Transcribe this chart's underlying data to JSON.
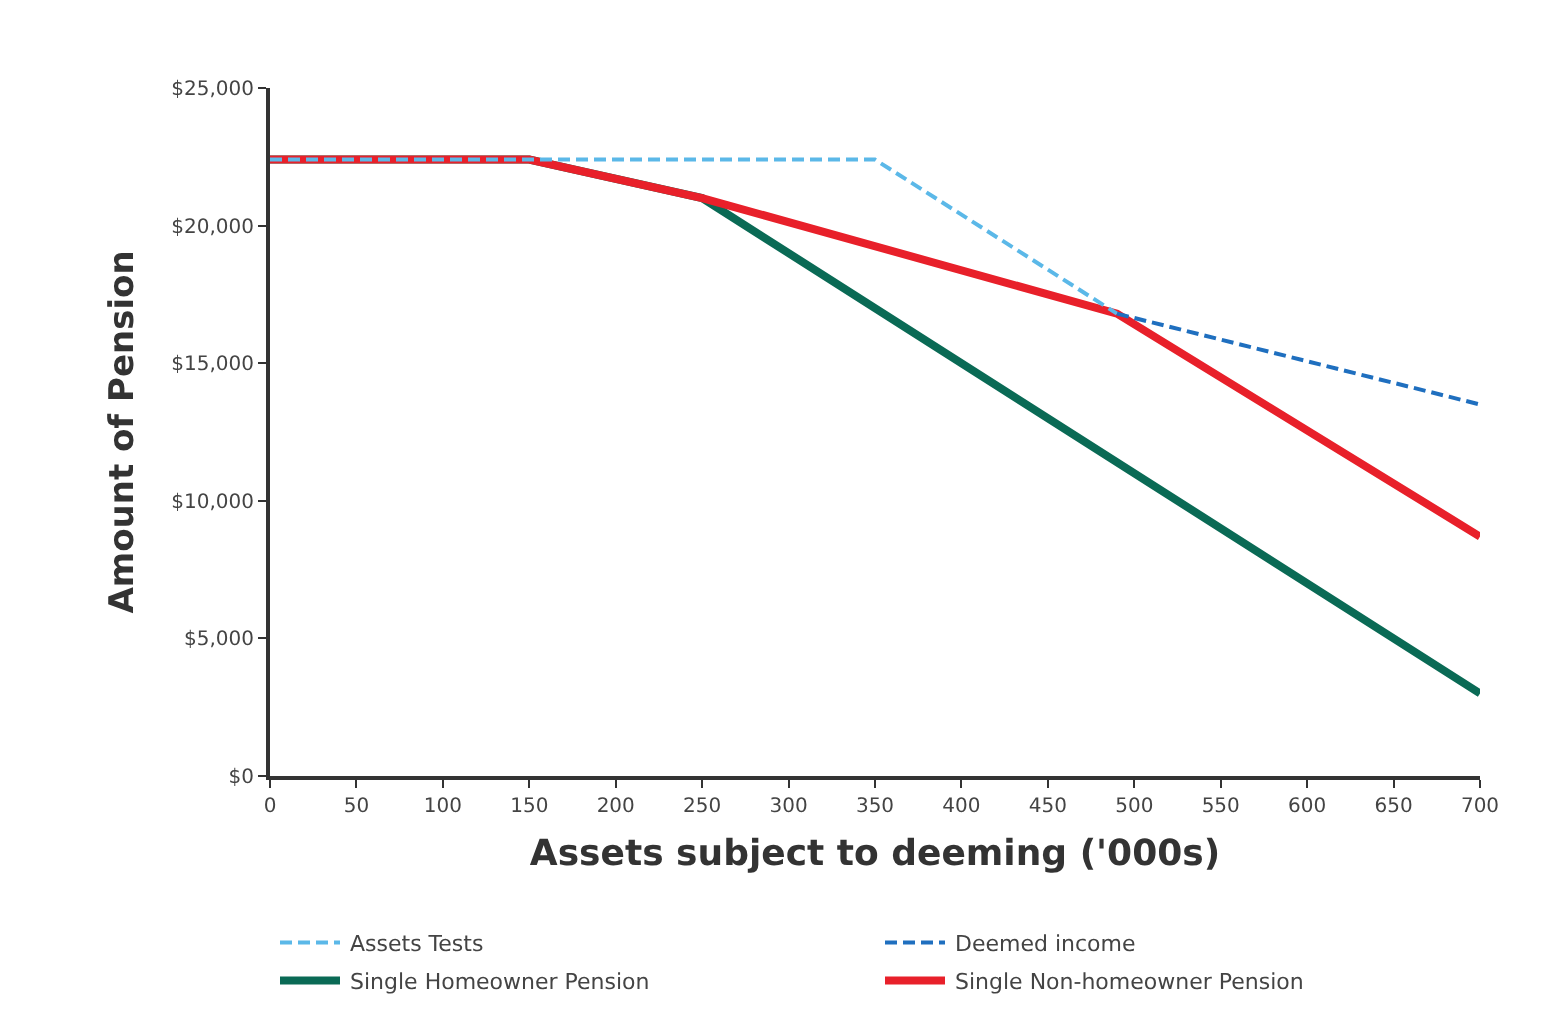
{
  "chart_data": {
    "type": "line",
    "xlabel": "Assets subject to deeming ('000s)",
    "ylabel": "Amount of Pension",
    "xlim": [
      0,
      700
    ],
    "xticks": [
      0,
      50,
      100,
      150,
      200,
      250,
      300,
      350,
      400,
      450,
      500,
      550,
      600,
      650,
      700
    ],
    "ylim": [
      0,
      25000
    ],
    "yticks": [
      {
        "value": 0,
        "label": "$0"
      },
      {
        "value": 5000,
        "label": "$5,000"
      },
      {
        "value": 10000,
        "label": "$10,000"
      },
      {
        "value": 15000,
        "label": "$15,000"
      },
      {
        "value": 20000,
        "label": "$20,000"
      },
      {
        "value": 25000,
        "label": "$25,000"
      }
    ],
    "grid": false,
    "legend": "bottom",
    "marker": "none",
    "series": [
      {
        "name": "Assets Tests",
        "color": "#5bb8e8",
        "line_style": "dashed",
        "x": [
          0,
          150,
          350,
          490
        ],
        "values": [
          22400,
          22400,
          22400,
          16800
        ]
      },
      {
        "name": "Deemed income",
        "color": "#1f6fbf",
        "line_style": "dashed",
        "x": [
          490,
          700
        ],
        "values": [
          16800,
          13500
        ]
      },
      {
        "name": "Single Homeowner Pension",
        "color": "#0a6a55",
        "line_style": "solid",
        "x": [
          0,
          150,
          250,
          700
        ],
        "values": [
          22400,
          22400,
          21000,
          3000
        ]
      },
      {
        "name": "Single Non-homeowner Pension",
        "color": "#e8202a",
        "line_style": "solid",
        "x": [
          0,
          150,
          250,
          490,
          700
        ],
        "values": [
          22400,
          22400,
          21000,
          16800,
          8700
        ]
      }
    ]
  }
}
